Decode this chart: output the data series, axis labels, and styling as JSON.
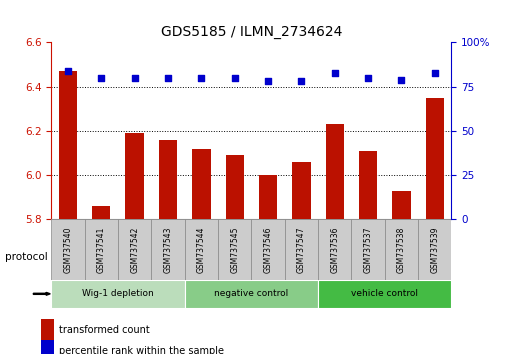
{
  "title": "GDS5185 / ILMN_2734624",
  "samples": [
    "GSM737540",
    "GSM737541",
    "GSM737542",
    "GSM737543",
    "GSM737544",
    "GSM737545",
    "GSM737546",
    "GSM737547",
    "GSM737536",
    "GSM737537",
    "GSM737538",
    "GSM737539"
  ],
  "bar_values": [
    6.47,
    5.86,
    6.19,
    6.16,
    6.12,
    6.09,
    6.0,
    6.06,
    6.23,
    6.11,
    5.93,
    6.35
  ],
  "dot_values": [
    84,
    80,
    80,
    80,
    80,
    80,
    78,
    78,
    83,
    80,
    79,
    83
  ],
  "ylim_left": [
    5.8,
    6.6
  ],
  "ylim_right": [
    0,
    100
  ],
  "yticks_left": [
    5.8,
    6.0,
    6.2,
    6.4,
    6.6
  ],
  "yticks_right": [
    0,
    25,
    50,
    75,
    100
  ],
  "bar_color": "#bb1100",
  "dot_color": "#0000cc",
  "bar_width": 0.55,
  "groups": [
    {
      "label": "Wig-1 depletion",
      "indices": [
        0,
        1,
        2,
        3
      ],
      "color": "#bbddbb"
    },
    {
      "label": "negative control",
      "indices": [
        4,
        5,
        6,
        7
      ],
      "color": "#88cc88"
    },
    {
      "label": "vehicle control",
      "indices": [
        8,
        9,
        10,
        11
      ],
      "color": "#44bb44"
    }
  ],
  "protocol_label": "protocol",
  "legend_bar_label": "transformed count",
  "legend_dot_label": "percentile rank within the sample",
  "axis_label_color_left": "#cc1100",
  "axis_label_color_right": "#0000cc",
  "background_color": "#ffffff",
  "plot_background": "#ffffff",
  "grid_lines": [
    6.0,
    6.2,
    6.4
  ],
  "sample_box_color": "#cccccc",
  "sample_box_edge": "#888888"
}
